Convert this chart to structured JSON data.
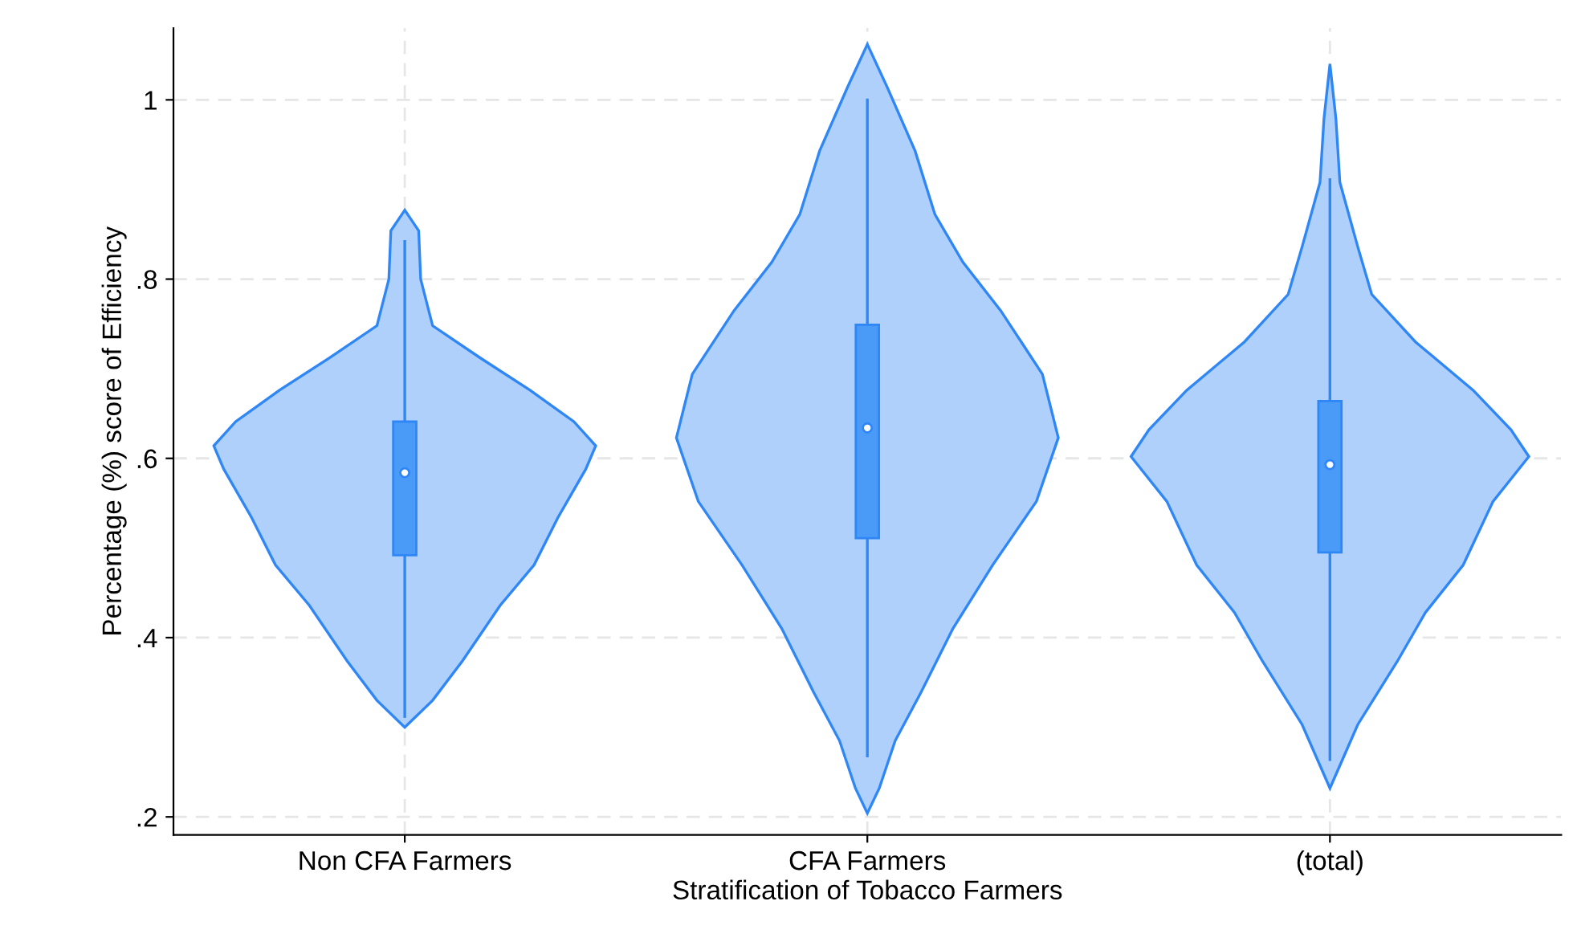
{
  "chart_data": {
    "type": "box",
    "xlabel": "Stratification of Tobacco Farmers",
    "ylabel": "Percentage (%) score of Efficiency",
    "categories": [
      "Non CFA Farmers",
      "CFA Farmers",
      "(total)"
    ],
    "boxes": [
      {
        "low": 0.312,
        "q1": 0.492,
        "median": 0.584,
        "q3": 0.641,
        "high": 0.842
      },
      {
        "low": 0.268,
        "q1": 0.511,
        "median": 0.634,
        "q3": 0.749,
        "high": 1.0
      },
      {
        "low": 0.264,
        "q1": 0.495,
        "median": 0.593,
        "q3": 0.664,
        "high": 0.911
      }
    ],
    "color": "#4a9bf7",
    "ylim": [
      0.18,
      1.08
    ],
    "yticks": [
      {
        "value": 0.2,
        "label": ".2"
      },
      {
        "value": 0.4,
        "label": ".4"
      },
      {
        "value": 0.6,
        "label": ".6"
      },
      {
        "value": 0.8,
        "label": ".8"
      },
      {
        "value": 1,
        "label": "1"
      }
    ],
    "grid": true,
    "line_style": "dashed",
    "marker": "circle"
  }
}
